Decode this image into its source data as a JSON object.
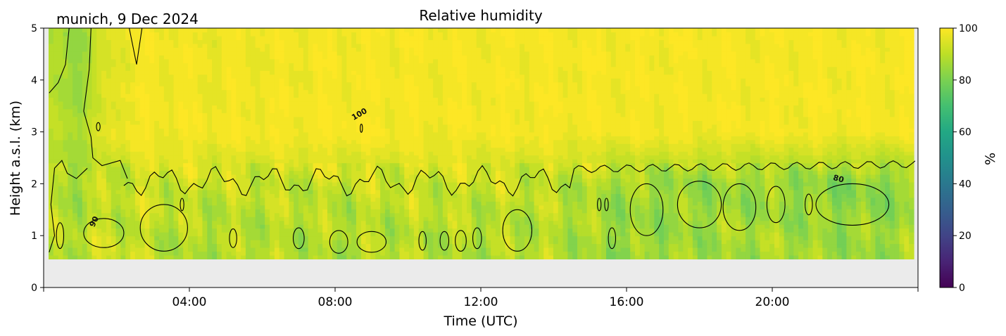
{
  "chart_data": {
    "type": "heatmap",
    "title": "Relative humidity",
    "subtitle": "munich, 9 Dec 2024",
    "xlabel": "Time (UTC)",
    "ylabel": "Height a.s.l. (km)",
    "x_range_hours": [
      0,
      24
    ],
    "ylim": [
      0,
      5
    ],
    "x_ticks": [
      "04:00",
      "08:00",
      "12:00",
      "16:00",
      "20:00"
    ],
    "x_tick_hours": [
      4,
      8,
      12,
      16,
      20
    ],
    "y_ticks": [
      0,
      1,
      2,
      3,
      4,
      5
    ],
    "data_bottom_km": 0.55,
    "colorbar": {
      "label": "%",
      "min": 0,
      "max": 100,
      "ticks": [
        0,
        20,
        40,
        60,
        80,
        100
      ],
      "colormap": "viridis"
    },
    "contour_labels": [
      {
        "text": "100",
        "hour": 8.7,
        "km": 3.3
      },
      {
        "text": "90",
        "hour": 1.45,
        "km": 1.25
      },
      {
        "text": "80",
        "hour": 21.8,
        "km": 2.05
      }
    ],
    "rh_profile_by_time": [
      {
        "hour": 0.0,
        "rh_1km": 88,
        "rh_2km": 86,
        "rh_3km": 90,
        "rh_4km": 88
      },
      {
        "hour": 1.0,
        "rh_1km": 90,
        "rh_2km": 88,
        "rh_3km": 88,
        "rh_4km": 85
      },
      {
        "hour": 2.0,
        "rh_1km": 92,
        "rh_2km": 90,
        "rh_3km": 98,
        "rh_4km": 97
      },
      {
        "hour": 3.0,
        "rh_1km": 90,
        "rh_2km": 93,
        "rh_3km": 99,
        "rh_4km": 99
      },
      {
        "hour": 4.0,
        "rh_1km": 88,
        "rh_2km": 92,
        "rh_3km": 99,
        "rh_4km": 98
      },
      {
        "hour": 6.0,
        "rh_1km": 89,
        "rh_2km": 91,
        "rh_3km": 99,
        "rh_4km": 98
      },
      {
        "hour": 8.0,
        "rh_1km": 88,
        "rh_2km": 91,
        "rh_3km": 100,
        "rh_4km": 99
      },
      {
        "hour": 10.0,
        "rh_1km": 89,
        "rh_2km": 92,
        "rh_3km": 99,
        "rh_4km": 99
      },
      {
        "hour": 12.0,
        "rh_1km": 88,
        "rh_2km": 92,
        "rh_3km": 99,
        "rh_4km": 99
      },
      {
        "hour": 14.0,
        "rh_1km": 89,
        "rh_2km": 90,
        "rh_3km": 99,
        "rh_4km": 99
      },
      {
        "hour": 16.0,
        "rh_1km": 84,
        "rh_2km": 86,
        "rh_3km": 99,
        "rh_4km": 99
      },
      {
        "hour": 18.0,
        "rh_1km": 86,
        "rh_2km": 84,
        "rh_3km": 99,
        "rh_4km": 99
      },
      {
        "hour": 20.0,
        "rh_1km": 87,
        "rh_2km": 85,
        "rh_3km": 99,
        "rh_4km": 99
      },
      {
        "hour": 22.0,
        "rh_1km": 85,
        "rh_2km": 82,
        "rh_3km": 99,
        "rh_4km": 99
      },
      {
        "hour": 24.0,
        "rh_1km": 86,
        "rh_2km": 83,
        "rh_3km": 99,
        "rh_4km": 99
      }
    ]
  }
}
